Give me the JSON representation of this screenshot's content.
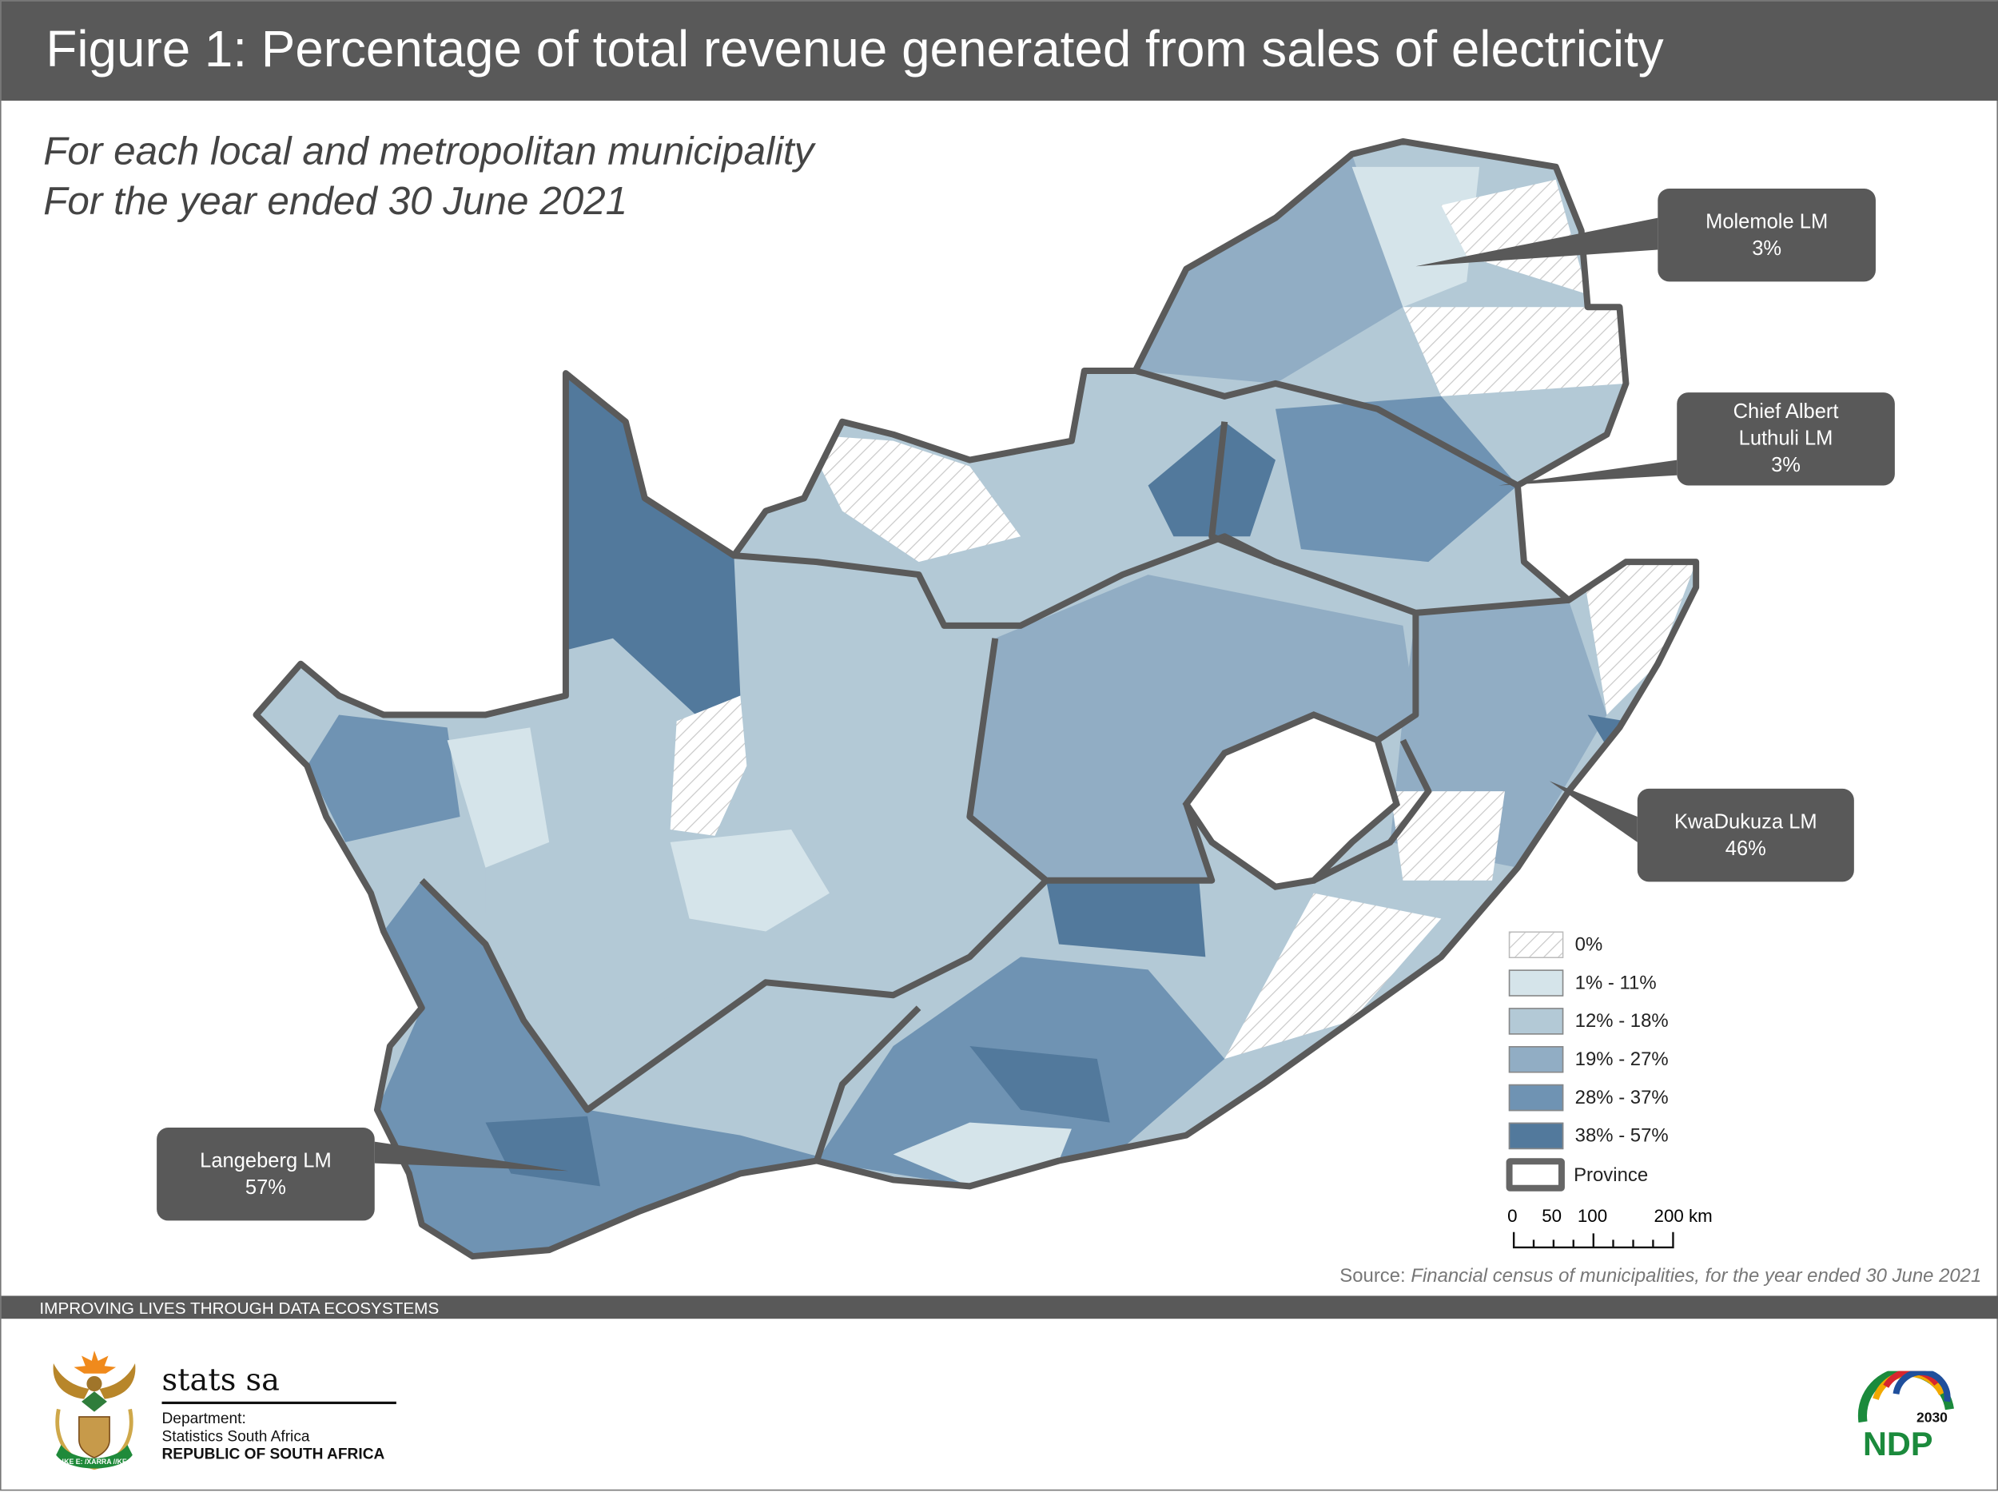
{
  "header": {
    "title": "Figure 1: Percentage of total revenue generated from sales of electricity"
  },
  "subtitle": {
    "line1": "For each local and metropolitan municipality",
    "line2": "For the year ended 30 June 2021"
  },
  "callouts": [
    {
      "name": "Molemole LM",
      "value": "3%"
    },
    {
      "name_l1": "Chief Albert",
      "name_l2": "Luthuli LM",
      "value": "3%"
    },
    {
      "name": "KwaDukuza LM",
      "value": "46%"
    },
    {
      "name": "Langeberg LM",
      "value": "57%"
    }
  ],
  "legend": {
    "items": [
      {
        "label": "0%",
        "color": "hatch"
      },
      {
        "label": "1% - 11%",
        "color": "#d5e4ea"
      },
      {
        "label": "12% - 18%",
        "color": "#b3c9d6"
      },
      {
        "label": "19% - 27%",
        "color": "#91adc4"
      },
      {
        "label": "28% - 37%",
        "color": "#6f93b3"
      },
      {
        "label": "38% - 57%",
        "color": "#52799c"
      }
    ],
    "province_label": "Province",
    "scale": {
      "t0": "0",
      "t1": "50",
      "t2": "100",
      "t3": "200 km"
    }
  },
  "source": {
    "prefix": "Source: ",
    "text": "Financial census of municipalities, for the year ended 30 June 2021"
  },
  "footer": {
    "tagline": "IMPROVING LIVES THROUGH DATA ECOSYSTEMS",
    "brand": "stats sa",
    "dept1": "Department:",
    "dept2": "Statistics South Africa",
    "dept3": "REPUBLIC OF SOUTH AFRICA",
    "coat_motto": "!KE E: /XARRA //KE",
    "ndp_logo": "2030 NDP"
  },
  "colors": {
    "bar": "#595959",
    "c1": "#d5e4ea",
    "c2": "#b3c9d6",
    "c3": "#91adc4",
    "c4": "#6f93b3",
    "c5": "#52799c"
  }
}
